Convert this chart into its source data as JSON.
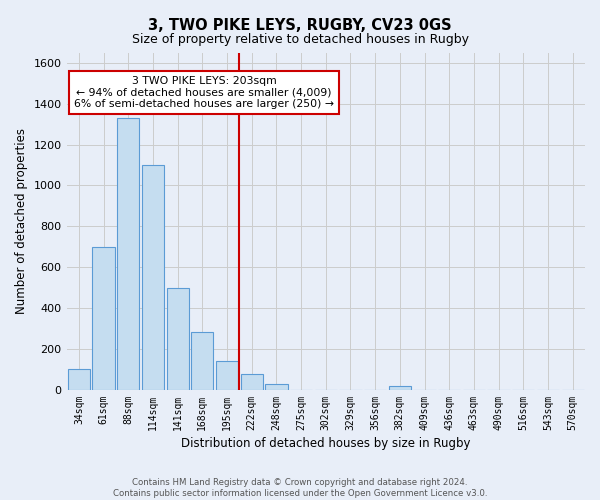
{
  "title": "3, TWO PIKE LEYS, RUGBY, CV23 0GS",
  "subtitle": "Size of property relative to detached houses in Rugby",
  "xlabel": "Distribution of detached houses by size in Rugby",
  "ylabel": "Number of detached properties",
  "bar_labels": [
    "34sqm",
    "61sqm",
    "88sqm",
    "114sqm",
    "141sqm",
    "168sqm",
    "195sqm",
    "222sqm",
    "248sqm",
    "275sqm",
    "302sqm",
    "329sqm",
    "356sqm",
    "382sqm",
    "409sqm",
    "436sqm",
    "463sqm",
    "490sqm",
    "516sqm",
    "543sqm",
    "570sqm"
  ],
  "bar_values": [
    100,
    700,
    1330,
    1100,
    500,
    285,
    140,
    80,
    30,
    0,
    0,
    0,
    0,
    20,
    0,
    0,
    0,
    0,
    0,
    0,
    0
  ],
  "bar_color": "#c5ddf0",
  "bar_edgecolor": "#5b9bd5",
  "vline_x": 6.5,
  "vline_color": "#cc0000",
  "annotation_line1": "3 TWO PIKE LEYS: 203sqm",
  "annotation_line2": "← 94% of detached houses are smaller (4,009)",
  "annotation_line3": "6% of semi-detached houses are larger (250) →",
  "annotation_box_facecolor": "#ffffff",
  "annotation_box_edgecolor": "#cc0000",
  "ylim": [
    0,
    1650
  ],
  "yticks": [
    0,
    200,
    400,
    600,
    800,
    1000,
    1200,
    1400,
    1600
  ],
  "grid_color": "#cccccc",
  "background_color": "#e8eef8",
  "footer_line1": "Contains HM Land Registry data © Crown copyright and database right 2024.",
  "footer_line2": "Contains public sector information licensed under the Open Government Licence v3.0."
}
